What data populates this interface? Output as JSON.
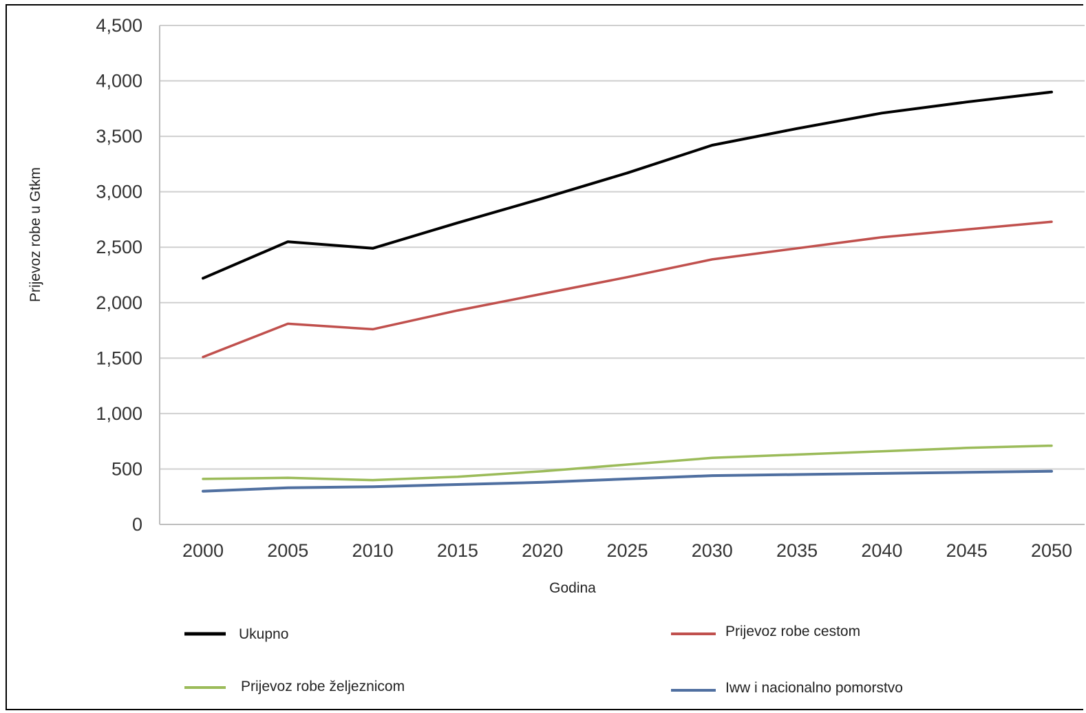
{
  "chart_data": {
    "type": "line",
    "title": "",
    "xlabel": "Godina",
    "ylabel": "Prijevoz robe u Gtkm",
    "x": [
      2000,
      2005,
      2010,
      2015,
      2020,
      2025,
      2030,
      2035,
      2040,
      2045,
      2050
    ],
    "x_tick_labels": [
      "2000",
      "2005",
      "2010",
      "2015",
      "2020",
      "2025",
      "2030",
      "2035",
      "2040",
      "2045",
      "2050"
    ],
    "ylim": [
      0,
      4500
    ],
    "y_ticks": [
      0,
      500,
      1000,
      1500,
      2000,
      2500,
      3000,
      3500,
      4000,
      4500
    ],
    "y_tick_labels": [
      "0",
      "500",
      "1,000",
      "1,500",
      "2,000",
      "2,500",
      "3,000",
      "3,500",
      "4,000",
      "4,500"
    ],
    "grid": "horizontal",
    "legend_position": "bottom",
    "series": [
      {
        "name": "Ukupno",
        "color": "#000000",
        "values": [
          2220,
          2550,
          2490,
          2720,
          2940,
          3170,
          3420,
          3570,
          3710,
          3810,
          3900
        ]
      },
      {
        "name": "Prijevoz robe cestom",
        "color": "#c0504d",
        "values": [
          1510,
          1810,
          1760,
          1930,
          2080,
          2230,
          2390,
          2490,
          2590,
          2660,
          2730
        ]
      },
      {
        "name": "Prijevoz robe željeznicom",
        "color": "#9bbb59",
        "values": [
          410,
          420,
          400,
          430,
          480,
          540,
          600,
          630,
          660,
          690,
          710
        ]
      },
      {
        "name": "Iww i nacionalno pomorstvo",
        "color": "#4f6fa0",
        "values": [
          300,
          330,
          340,
          360,
          380,
          410,
          440,
          450,
          460,
          470,
          480
        ]
      }
    ]
  }
}
